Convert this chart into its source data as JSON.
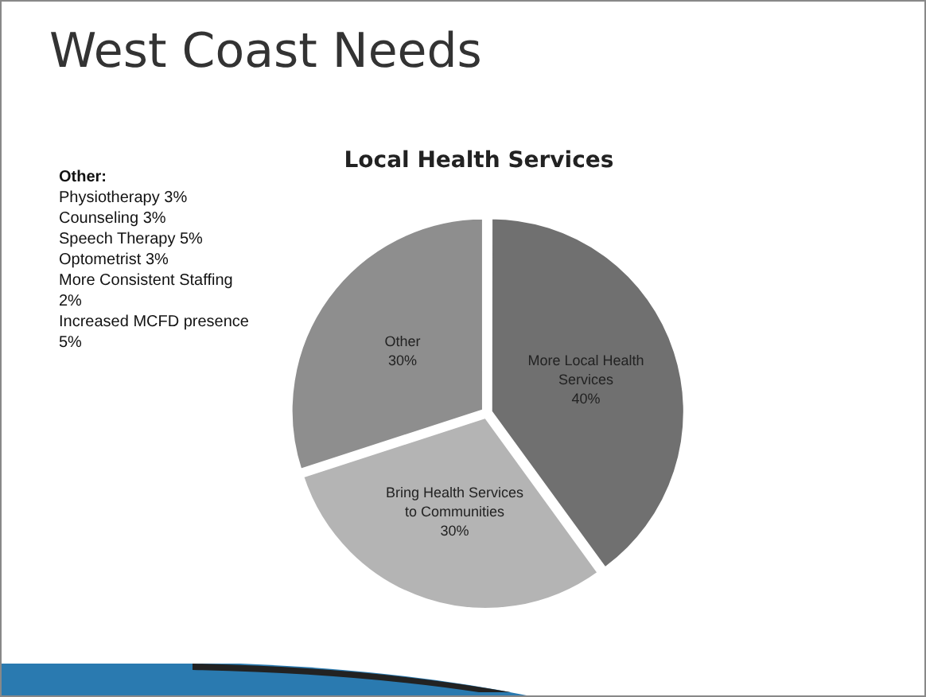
{
  "chart_data": {
    "type": "pie",
    "title": "West Coast Needs",
    "subtitle": "Local Health Services",
    "categories": [
      "More Local Health Services",
      "Bring Health Services to Communities",
      "Other"
    ],
    "values": [
      40,
      30,
      30
    ],
    "colors": [
      "#707070",
      "#b4b4b4",
      "#8e8e8e"
    ],
    "value_labels": [
      "40%",
      "30%",
      "30%"
    ],
    "legend": false,
    "annotations": [
      "Other:",
      "Physiotherapy 3%",
      "Counseling 3%",
      "Speech Therapy 5%",
      "Optometrist 3%",
      "More Consistent Staffing 2%",
      "Increased MCFD presence 5%"
    ]
  }
}
